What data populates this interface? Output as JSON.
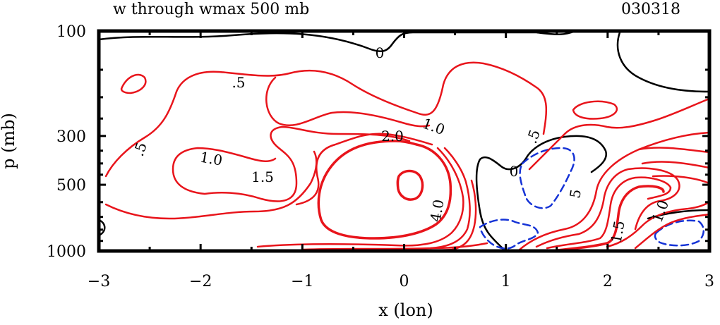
{
  "chart_data": {
    "type": "contour",
    "title": "w through wmax 500 mb",
    "date": "030318",
    "xlabel": "x (lon)",
    "ylabel": "p (mb)",
    "xlim": [
      -3,
      3
    ],
    "ylim": [
      1000,
      100
    ],
    "x_ticks": [
      "−3",
      "−2",
      "−1",
      "0",
      "1",
      "2",
      "3"
    ],
    "y_ticks": [
      "100",
      "300",
      "500",
      "1000"
    ],
    "contour_labels": [
      ".5",
      "0",
      ".5",
      "1.0",
      "1.5",
      "2.0",
      "1.0",
      ".5",
      "0",
      "4.0",
      "5",
      "1.0",
      "1.5"
    ],
    "colors": {
      "positive": "#e8141b",
      "negative": "#1533d6",
      "zero": "#000000"
    },
    "positive_levels": [
      0.5,
      1.0,
      1.5,
      2.0,
      4.0
    ],
    "negative_levels_dashed": true
  }
}
